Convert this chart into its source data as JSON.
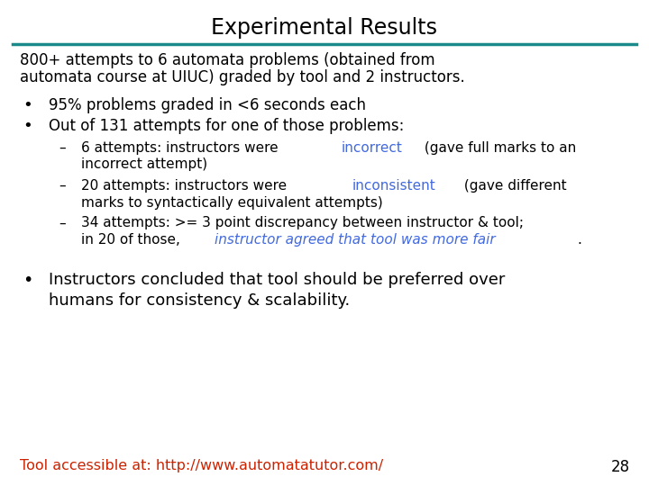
{
  "title": "Experimental Results",
  "title_color": "#000000",
  "title_fontsize": 17,
  "line_color": "#1a8a8a",
  "bg_color": "#ffffff",
  "body_fontsize": 12,
  "sub_fontsize": 11,
  "font_family": "DejaVu Sans",
  "intro_line1": "800+ attempts to 6 automata problems (obtained from",
  "intro_line2": "automata course at UIUC) graded by tool and 2 instructors.",
  "bullet1": "95% problems graded in <6 seconds each",
  "bullet2": "Out of 131 attempts for one of those problems:",
  "sub1_pre": "6 attempts: instructors were ",
  "sub1_colored": "incorrect",
  "sub1_post1": " (gave full marks to an",
  "sub1_post2": "incorrect attempt)",
  "sub1_color": "#4169e1",
  "sub2_pre": "20 attempts: instructors were ",
  "sub2_colored": "inconsistent",
  "sub2_post1": " (gave different",
  "sub2_post2": "marks to syntactically equivalent attempts)",
  "sub2_color": "#4169e1",
  "sub3_line1": "34 attempts: >= 3 point discrepancy between instructor & tool;",
  "sub3_pre2": "in 20 of those, ",
  "sub3_colored": "instructor agreed that tool was more fair",
  "sub3_post": ".",
  "sub3_color": "#4169e1",
  "bullet3_line1": "Instructors concluded that tool should be preferred over",
  "bullet3_line2": "humans for consistency & scalability.",
  "footer": "Tool accessible at: http://www.automatatutor.com/",
  "footer_color": "#cc2200",
  "page_num": "28",
  "page_color": "#000000"
}
